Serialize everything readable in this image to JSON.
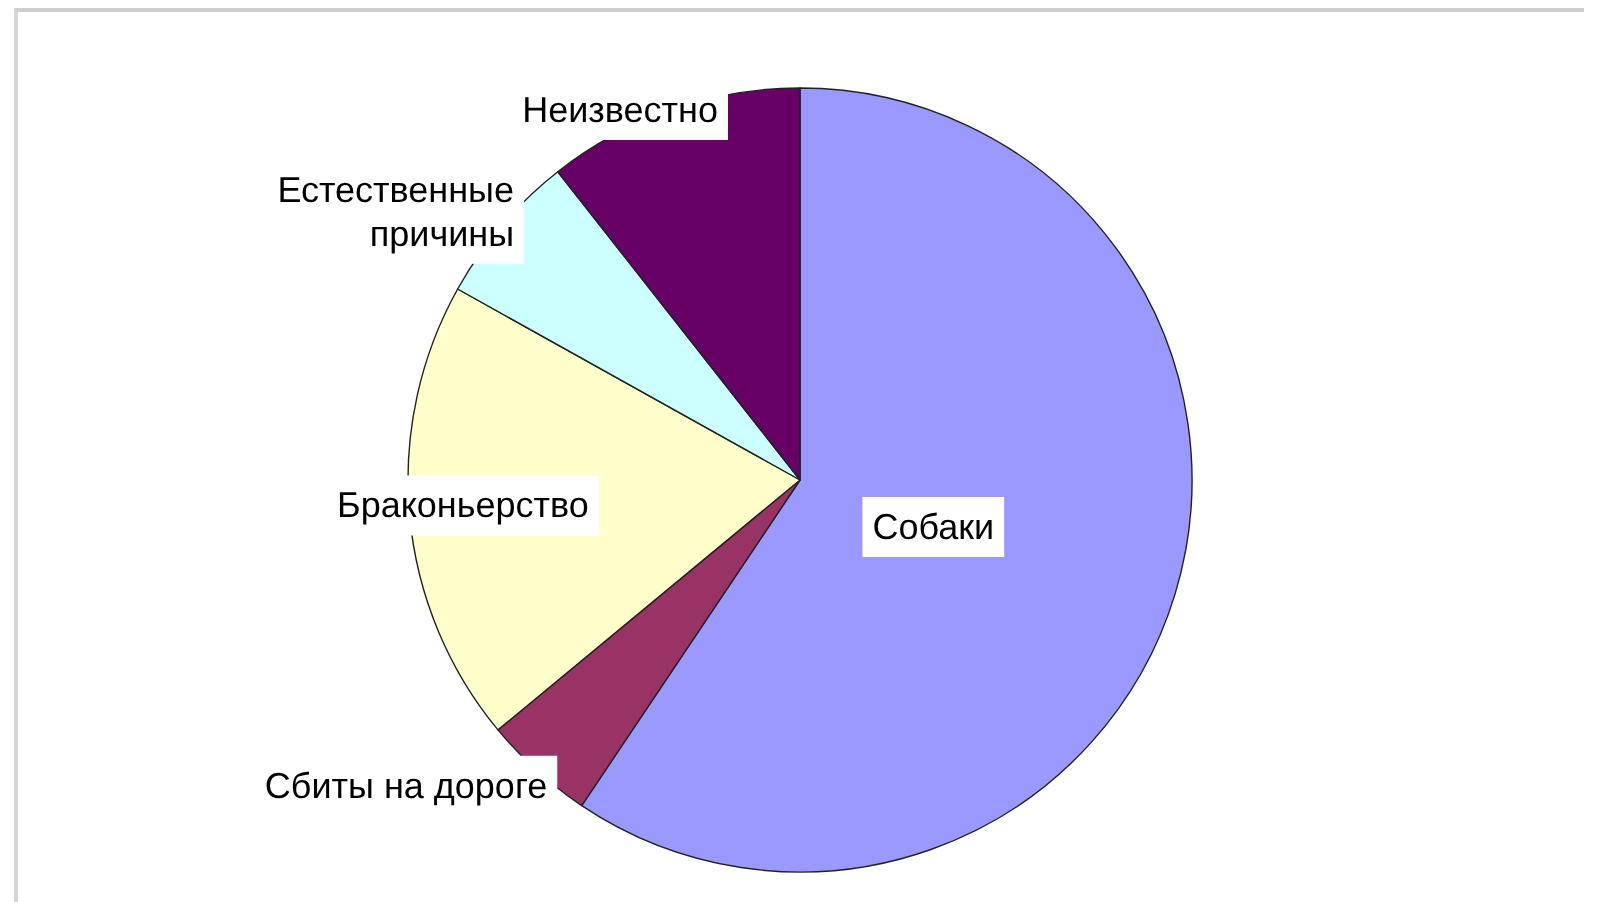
{
  "chart_data": {
    "type": "pie",
    "categories": [
      "Собаки",
      "Сбиты на дороге",
      "Браконьерство",
      "Естественные причины",
      "Неизвестно"
    ],
    "values": [
      59.4,
      4.6,
      19.1,
      6.3,
      10.6
    ],
    "colors": [
      "#9999ff",
      "#993366",
      "#ffffcc",
      "#ccffff",
      "#660066"
    ]
  }
}
